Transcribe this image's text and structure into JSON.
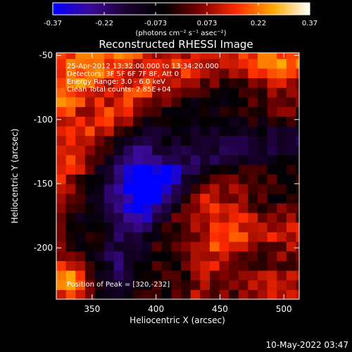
{
  "colorbar": {
    "ticks": [
      "-0.37",
      "-0.22",
      "-0.073",
      "0.073",
      "0.22",
      "0.37"
    ],
    "unit_label": "(photons cm⁻² s⁻¹ asec⁻²)",
    "colors": [
      "#0000ff",
      "#3a0a9a",
      "#1a0030",
      "#000000",
      "#7a0000",
      "#ff2a00",
      "#ffa800",
      "#ffffff"
    ]
  },
  "chart_data": {
    "type": "heatmap",
    "title": "Reconstructed RHESSI Image",
    "xlabel": "Heliocentric X (arcsec)",
    "ylabel": "Heliocentric Y (arcsec)",
    "xlim": [
      322,
      512
    ],
    "ylim": [
      -240,
      -48
    ],
    "x_ticks": [
      350,
      400,
      450,
      500
    ],
    "y_ticks": [
      -50,
      -100,
      -150,
      -200
    ],
    "value_range": [
      -0.37,
      0.37
    ],
    "info_lines": [
      "25-Apr-2012 13:32:00.000 to 13:34:20.000",
      "Detectors: 3F 5F 6F 7F 8F, Att 0",
      "Energy Range: 3.0 - 6.0 keV",
      "Clean    Total counts: 2.85E+04"
    ],
    "peak_label": "Position of Peak = [320,-232]",
    "peak": [
      320,
      -232
    ],
    "features": [
      {
        "kind": "arc",
        "sign": "negative",
        "description_values": {
          "center": [
            490,
            -240
          ],
          "radius": 130
        }
      },
      {
        "kind": "blob",
        "sign": "negative",
        "x": 390,
        "y": -148,
        "value": -0.37
      },
      {
        "kind": "blob",
        "sign": "positive",
        "x": 445,
        "y": -175,
        "value": 0.2
      },
      {
        "kind": "blob",
        "sign": "positive",
        "x": 500,
        "y": -75,
        "value": 0.15
      },
      {
        "kind": "blob",
        "sign": "positive",
        "x": 330,
        "y": -225,
        "value": 0.37
      }
    ]
  },
  "timestamp": "10-May-2022 03:47"
}
